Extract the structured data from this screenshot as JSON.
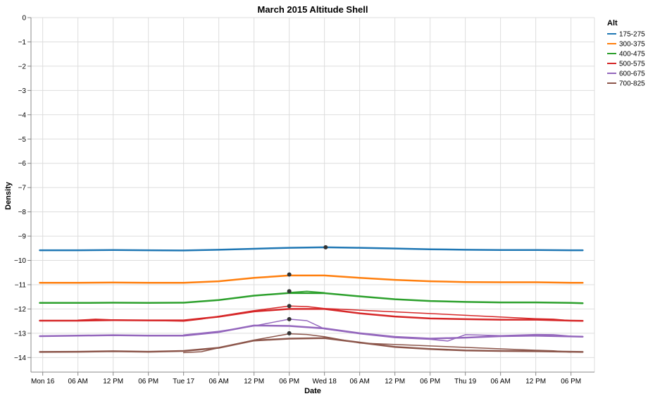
{
  "chart_data": {
    "type": "line",
    "title": "March 2015 Altitude Shell",
    "xlabel": "Date",
    "ylabel": "Density",
    "x_ticks": [
      "Mon 16",
      "06 AM",
      "12 PM",
      "06 PM",
      "Tue 17",
      "06 AM",
      "12 PM",
      "06 PM",
      "Wed 18",
      "06 AM",
      "12 PM",
      "06 PM",
      "Thu 19",
      "06 AM",
      "12 PM",
      "06 PM"
    ],
    "x_tick_hours": [
      0,
      6,
      12,
      18,
      24,
      30,
      36,
      42,
      48,
      54,
      60,
      66,
      72,
      78,
      84,
      90
    ],
    "x_domain_hours": [
      -2,
      94
    ],
    "ylim": [
      -14.6,
      0
    ],
    "y_ticks": [
      0,
      -1,
      -2,
      -3,
      -4,
      -5,
      -6,
      -7,
      -8,
      -9,
      -10,
      -11,
      -12,
      -13,
      -14
    ],
    "grid": true,
    "legend": {
      "title": "Alt",
      "placement": "right"
    },
    "series": [
      {
        "name": "175-275",
        "color": "#1f77b4",
        "lines": [
          {
            "width": 2.5,
            "points": [
              [
                -0.5,
                -9.58
              ],
              [
                6,
                -9.58
              ],
              [
                12,
                -9.57
              ],
              [
                18,
                -9.58
              ],
              [
                24,
                -9.59
              ],
              [
                30,
                -9.56
              ],
              [
                36,
                -9.52
              ],
              [
                42,
                -9.48
              ],
              [
                48,
                -9.46
              ],
              [
                54,
                -9.48
              ],
              [
                60,
                -9.51
              ],
              [
                66,
                -9.54
              ],
              [
                72,
                -9.56
              ],
              [
                78,
                -9.57
              ],
              [
                84,
                -9.57
              ],
              [
                90,
                -9.58
              ],
              [
                92,
                -9.58
              ]
            ]
          }
        ],
        "markers": [
          [
            48.2,
            -9.46
          ]
        ]
      },
      {
        "name": "300-375",
        "color": "#ff7f0e",
        "lines": [
          {
            "width": 2.5,
            "points": [
              [
                -0.5,
                -10.92
              ],
              [
                6,
                -10.92
              ],
              [
                12,
                -10.91
              ],
              [
                18,
                -10.92
              ],
              [
                24,
                -10.92
              ],
              [
                30,
                -10.86
              ],
              [
                36,
                -10.72
              ],
              [
                42,
                -10.62
              ],
              [
                48,
                -10.62
              ],
              [
                54,
                -10.72
              ],
              [
                60,
                -10.8
              ],
              [
                66,
                -10.86
              ],
              [
                72,
                -10.89
              ],
              [
                78,
                -10.9
              ],
              [
                84,
                -10.9
              ],
              [
                90,
                -10.92
              ],
              [
                92,
                -10.92
              ]
            ]
          }
        ],
        "markers": [
          [
            42,
            -10.58
          ]
        ]
      },
      {
        "name": "400-475",
        "color": "#2ca02c",
        "lines": [
          {
            "width": 2.5,
            "points": [
              [
                -0.5,
                -11.75
              ],
              [
                6,
                -11.75
              ],
              [
                12,
                -11.74
              ],
              [
                18,
                -11.75
              ],
              [
                24,
                -11.74
              ],
              [
                30,
                -11.63
              ],
              [
                36,
                -11.45
              ],
              [
                42,
                -11.34
              ],
              [
                48,
                -11.35
              ],
              [
                54,
                -11.48
              ],
              [
                60,
                -11.6
              ],
              [
                66,
                -11.67
              ],
              [
                72,
                -11.71
              ],
              [
                78,
                -11.73
              ],
              [
                84,
                -11.73
              ],
              [
                90,
                -11.75
              ],
              [
                92,
                -11.76
              ]
            ]
          },
          {
            "width": 1.5,
            "points": [
              [
                42,
                -11.32
              ],
              [
                45,
                -11.27
              ],
              [
                48,
                -11.33
              ]
            ]
          }
        ],
        "markers": [
          [
            42,
            -11.27
          ]
        ]
      },
      {
        "name": "500-575",
        "color": "#d62728",
        "lines": [
          {
            "width": 2.5,
            "points": [
              [
                -0.5,
                -12.48
              ],
              [
                6,
                -12.48
              ],
              [
                12,
                -12.46
              ],
              [
                18,
                -12.47
              ],
              [
                24,
                -12.47
              ],
              [
                30,
                -12.32
              ],
              [
                36,
                -12.1
              ],
              [
                42,
                -12.0
              ],
              [
                48,
                -12.0
              ],
              [
                54,
                -12.18
              ],
              [
                60,
                -12.31
              ],
              [
                66,
                -12.39
              ],
              [
                72,
                -12.42
              ],
              [
                78,
                -12.44
              ],
              [
                84,
                -12.44
              ],
              [
                90,
                -12.48
              ],
              [
                92,
                -12.49
              ]
            ]
          },
          {
            "width": 1.5,
            "points": [
              [
                6,
                -12.46
              ],
              [
                9,
                -12.42
              ],
              [
                12,
                -12.45
              ],
              [
                24,
                -12.5
              ],
              [
                27,
                -12.42
              ],
              [
                30,
                -12.3
              ],
              [
                36,
                -12.07
              ],
              [
                42,
                -11.88
              ],
              [
                45,
                -11.9
              ],
              [
                48,
                -11.98
              ],
              [
                84,
                -12.4
              ],
              [
                87,
                -12.42
              ],
              [
                90,
                -12.48
              ]
            ]
          }
        ],
        "markers": [
          [
            42,
            -11.88
          ]
        ]
      },
      {
        "name": "600-675",
        "color": "#9467bd",
        "lines": [
          {
            "width": 2.5,
            "points": [
              [
                -0.5,
                -13.12
              ],
              [
                6,
                -13.1
              ],
              [
                12,
                -13.08
              ],
              [
                18,
                -13.1
              ],
              [
                24,
                -13.1
              ],
              [
                30,
                -12.95
              ],
              [
                36,
                -12.68
              ],
              [
                42,
                -12.7
              ],
              [
                48,
                -12.8
              ],
              [
                54,
                -13.0
              ],
              [
                60,
                -13.15
              ],
              [
                66,
                -13.22
              ],
              [
                72,
                -13.18
              ],
              [
                78,
                -13.12
              ],
              [
                84,
                -13.1
              ],
              [
                90,
                -13.13
              ],
              [
                92,
                -13.14
              ]
            ]
          },
          {
            "width": 1.5,
            "points": [
              [
                24,
                -13.07
              ],
              [
                30,
                -12.92
              ],
              [
                36,
                -12.7
              ],
              [
                39,
                -12.56
              ],
              [
                42,
                -12.42
              ],
              [
                45,
                -12.48
              ],
              [
                48,
                -12.82
              ],
              [
                54,
                -13.02
              ],
              [
                60,
                -13.18
              ],
              [
                66,
                -13.25
              ],
              [
                69,
                -13.32
              ],
              [
                72,
                -13.06
              ],
              [
                78,
                -13.1
              ],
              [
                84,
                -13.05
              ],
              [
                87,
                -13.06
              ],
              [
                90,
                -13.12
              ]
            ]
          }
        ],
        "markers": [
          [
            42,
            -12.42
          ]
        ]
      },
      {
        "name": "700-825",
        "color": "#8c564b",
        "lines": [
          {
            "width": 2.5,
            "points": [
              [
                -0.5,
                -13.77
              ],
              [
                6,
                -13.76
              ],
              [
                12,
                -13.74
              ],
              [
                18,
                -13.76
              ],
              [
                24,
                -13.73
              ],
              [
                30,
                -13.6
              ],
              [
                36,
                -13.3
              ],
              [
                42,
                -13.22
              ],
              [
                48,
                -13.2
              ],
              [
                54,
                -13.38
              ],
              [
                60,
                -13.56
              ],
              [
                66,
                -13.65
              ],
              [
                72,
                -13.71
              ],
              [
                78,
                -13.73
              ],
              [
                84,
                -13.74
              ],
              [
                90,
                -13.76
              ],
              [
                92,
                -13.77
              ]
            ]
          },
          {
            "width": 1.5,
            "points": [
              [
                24,
                -13.8
              ],
              [
                27,
                -13.76
              ],
              [
                30,
                -13.6
              ],
              [
                36,
                -13.28
              ],
              [
                42,
                -13.02
              ],
              [
                45,
                -13.05
              ],
              [
                48,
                -13.14
              ],
              [
                54,
                -13.4
              ],
              [
                84,
                -13.7
              ],
              [
                87,
                -13.72
              ],
              [
                90,
                -13.78
              ]
            ]
          }
        ],
        "markers": [
          [
            42,
            -13.0
          ]
        ]
      }
    ]
  }
}
